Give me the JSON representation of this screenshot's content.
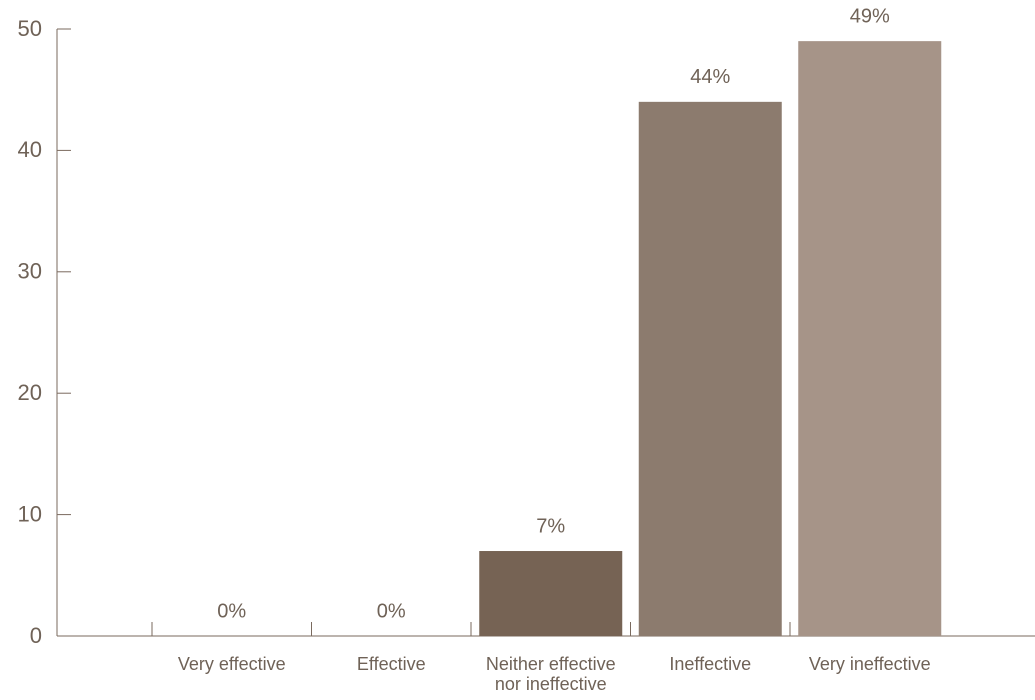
{
  "chart_data": {
    "type": "bar",
    "categories": [
      "Very effective",
      "Effective",
      "Neither effective nor ineffective",
      "Ineffective",
      "Very ineffective"
    ],
    "values": [
      0,
      0,
      7,
      44,
      49
    ],
    "value_labels": [
      "0%",
      "0%",
      "7%",
      "44%",
      "49%"
    ],
    "colors": [
      "#766354",
      "#766354",
      "#766354",
      "#8c7b6e",
      "#a69488"
    ],
    "ylim": [
      0,
      50
    ],
    "yticks": [
      0,
      10,
      20,
      30,
      40,
      50
    ],
    "grid": false
  }
}
